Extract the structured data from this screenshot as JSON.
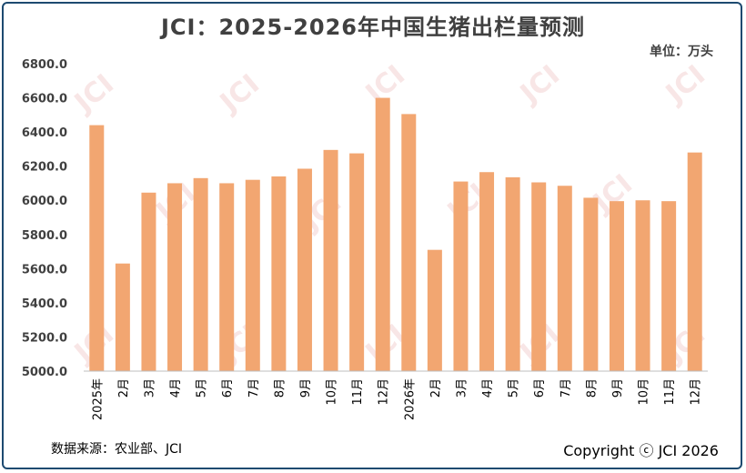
{
  "header": {
    "title": "JCI：2025-2026年中国生猪出栏量预测",
    "unit": "单位：万头"
  },
  "footer": {
    "source": "数据来源：农业部、JCI",
    "copyright": "Copyright ⓒ JCI 2026"
  },
  "watermark": {
    "text": "JCI"
  },
  "colors": {
    "bar": "#f2a671",
    "axis": "#bfbfbf",
    "frame": "#1d4a70",
    "watermark": "#f0c8c8"
  },
  "chart_data": {
    "type": "bar",
    "categories": [
      "2025年",
      "2月",
      "3月",
      "4月",
      "5月",
      "6月",
      "7月",
      "8月",
      "9月",
      "10月",
      "11月",
      "12月",
      "2026年",
      "2月",
      "3月",
      "4月",
      "5月",
      "6月",
      "7月",
      "8月",
      "9月",
      "10月",
      "11月",
      "12月"
    ],
    "values": [
      6440,
      5630,
      6045,
      6100,
      6130,
      6100,
      6120,
      6140,
      6185,
      6295,
      6275,
      6600,
      6505,
      5710,
      6110,
      6165,
      6135,
      6105,
      6085,
      6015,
      5995,
      6000,
      5995,
      6280
    ],
    "ylim": [
      5000,
      6800
    ],
    "yticks": [
      "5000.0",
      "5200.0",
      "5400.0",
      "5600.0",
      "5800.0",
      "6000.0",
      "6200.0",
      "6400.0",
      "6600.0",
      "6800.0"
    ],
    "grid": false
  }
}
